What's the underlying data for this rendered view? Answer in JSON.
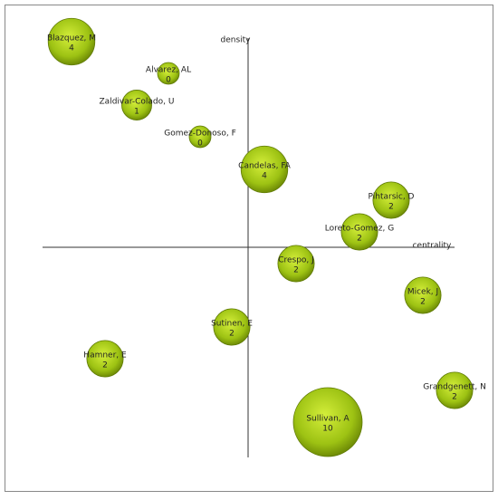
{
  "chart_data": {
    "type": "bubble",
    "x_label": "centrality",
    "y_label": "density",
    "xlim": [
      -23,
      23
    ],
    "ylim": [
      -23,
      23
    ],
    "color": "#9dc213",
    "labels": [
      "Blazquez, M",
      "Alvarez, AL",
      "Zaldivar-Colado, U",
      "Gomez-Donoso, F",
      "Candelas, FA",
      "Pihtarsic, D",
      "Loreto-Gomez, G",
      "Crespo, J",
      "Micek, J",
      "Sutinen, E",
      "Hamner, E",
      "Grandgenett, N",
      "Sullivan, A"
    ],
    "x": [
      -19.5,
      -8.8,
      -12.3,
      -5.3,
      1.8,
      15.8,
      12.3,
      5.3,
      19.3,
      -1.8,
      -15.8,
      22.8,
      8.8
    ],
    "values": [
      22.7,
      19.2,
      15.7,
      12.2,
      8.6,
      5.2,
      1.7,
      -1.8,
      -5.3,
      -8.8,
      -12.3,
      -15.8,
      -19.3
    ],
    "sizes": [
      4,
      0,
      1,
      0,
      4,
      2,
      2,
      2,
      2,
      2,
      2,
      2,
      10
    ]
  }
}
